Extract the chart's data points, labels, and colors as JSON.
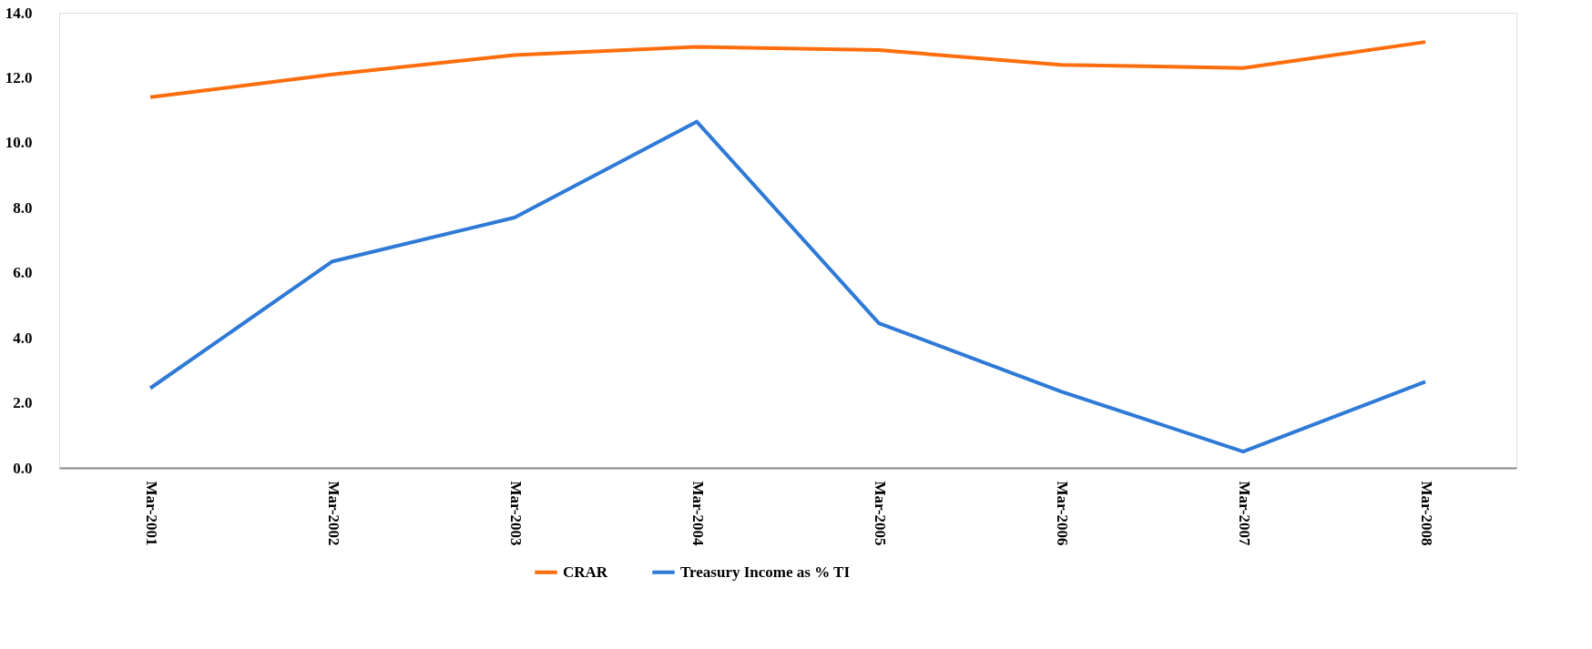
{
  "chart_data": {
    "type": "line",
    "categories": [
      "Mar-2001",
      "Mar-2002",
      "Mar-2003",
      "Mar-2004",
      "Mar-2005",
      "Mar-2006",
      "Mar-2007",
      "Mar-2008"
    ],
    "series": [
      {
        "name": "CRAR",
        "color": "#ff6d0c",
        "values": [
          11.4,
          12.1,
          12.7,
          12.95,
          12.85,
          12.4,
          12.3,
          13.1
        ]
      },
      {
        "name": "Treasury Income as % TI",
        "color": "#2e7ad6",
        "values": [
          2.45,
          6.35,
          7.7,
          10.65,
          4.45,
          2.35,
          0.5,
          2.65
        ]
      }
    ],
    "ylim": [
      0,
      14
    ],
    "yticks": [
      {
        "value": 0,
        "label": "0.0"
      },
      {
        "value": 2,
        "label": "2.0"
      },
      {
        "value": 4,
        "label": "4.0"
      },
      {
        "value": 6,
        "label": "6.0"
      },
      {
        "value": 8,
        "label": "8.0"
      },
      {
        "value": 10,
        "label": "10.0"
      },
      {
        "value": 12,
        "label": "12.0"
      },
      {
        "value": 14,
        "label": "14.0"
      }
    ],
    "grid": false,
    "legend": "bottom",
    "marker": "none",
    "line_style": "solid"
  }
}
